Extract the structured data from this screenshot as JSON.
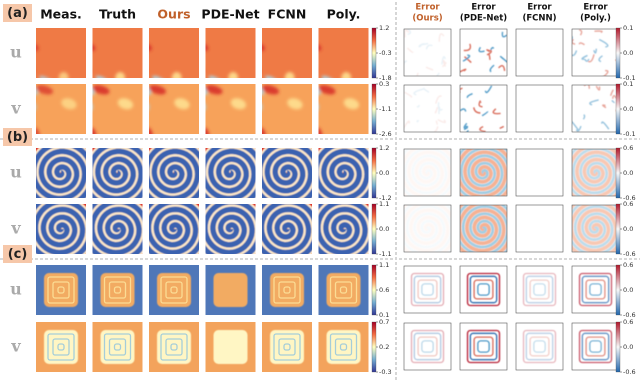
{
  "headers": [
    "Meas.",
    "Truth",
    "Ours",
    "PDE-Net",
    "FCNN",
    "Poly."
  ],
  "error_headers": [
    [
      "Error",
      "(Ours)"
    ],
    [
      "Error",
      "(PDE-Net)"
    ],
    [
      "Error",
      "(FCNN)"
    ],
    [
      "Error",
      "(Poly.)"
    ]
  ],
  "panels": [
    {
      "label": "(a)",
      "rows": [
        {
          "label": "u",
          "colorbar": [
            "1.2",
            "-0.3",
            "-1.8"
          ],
          "error_colorbar": [
            "0.1",
            "0.0",
            "-0.1"
          ]
        },
        {
          "label": "v",
          "colorbar": [
            "0.3",
            "-1.1",
            "-2.6"
          ],
          "error_colorbar": [
            "0.1",
            "0.0",
            "-0.1"
          ]
        }
      ]
    },
    {
      "label": "(b)",
      "rows": [
        {
          "label": "u",
          "colorbar": [
            "1.2",
            "0.0",
            "-1.2"
          ],
          "error_colorbar": [
            "0.6",
            "0.0",
            "-0.6"
          ]
        },
        {
          "label": "v",
          "colorbar": [
            "1.1",
            "0.0",
            "-1.1"
          ],
          "error_colorbar": [
            "0.6",
            "0.0",
            "-0.6"
          ]
        }
      ]
    },
    {
      "label": "(c)",
      "rows": [
        {
          "label": "u",
          "colorbar": [
            "1.1",
            "0.6",
            "0.1"
          ],
          "error_colorbar": [
            "0.6",
            "0.0",
            "-0.6"
          ]
        },
        {
          "label": "v",
          "colorbar": [
            "0.7",
            "0.2",
            "-0.3"
          ],
          "error_colorbar": [
            "0.6",
            "0.0",
            "-0.6"
          ]
        }
      ]
    }
  ]
}
